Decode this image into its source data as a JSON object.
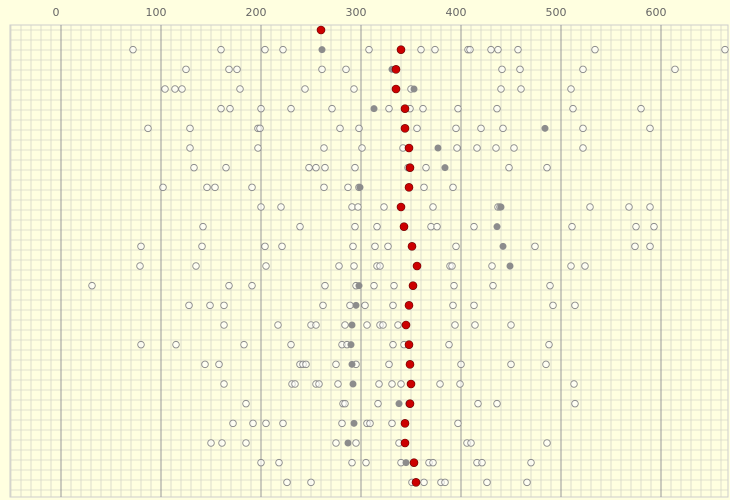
{
  "chart_data": {
    "type": "dotplot",
    "xlim": [
      -51,
      667
    ],
    "xticks": [
      0,
      100,
      200,
      300,
      400,
      500,
      600
    ],
    "grid": true,
    "background": "#ffffe0",
    "open_color": "#8c8c8c",
    "filled_color": "#8c8c8c",
    "marker_color": "#cc0000",
    "rows": [
      {
        "open": [],
        "filled": [],
        "marker": 260
      },
      {
        "open": [
          72,
          160,
          204,
          222,
          308,
          360,
          374,
          407,
          409,
          430,
          437,
          457,
          534,
          664
        ],
        "filled": [
          261
        ],
        "marker": 340
      },
      {
        "open": [
          125,
          168,
          176,
          261,
          285,
          441,
          459,
          522,
          614
        ],
        "filled": [
          331
        ],
        "marker": 335
      },
      {
        "open": [
          104,
          114,
          121,
          179,
          244,
          293,
          350,
          440,
          460,
          510
        ],
        "filled": [
          353
        ],
        "marker": 335
      },
      {
        "open": [
          160,
          169,
          200,
          230,
          271,
          328,
          349,
          362,
          397,
          436,
          512,
          580
        ],
        "filled": [
          313
        ],
        "marker": 344
      },
      {
        "open": [
          87,
          129,
          197,
          199,
          279,
          298,
          356,
          395,
          420,
          442,
          522,
          589
        ],
        "filled": [
          484
        ],
        "marker": 344
      },
      {
        "open": [
          129,
          197,
          263,
          301,
          342,
          396,
          416,
          435,
          453,
          522
        ],
        "filled": [
          377
        ],
        "marker": 348
      },
      {
        "open": [
          133,
          165,
          248,
          255,
          264,
          294,
          347,
          365,
          448,
          486
        ],
        "filled": [
          384
        ],
        "marker": 349
      },
      {
        "open": [
          102,
          146,
          154,
          191,
          263,
          287,
          298,
          363,
          392
        ],
        "filled": [
          299
        ],
        "marker": 348
      },
      {
        "open": [
          200,
          220,
          291,
          297,
          323,
          372,
          437,
          439,
          529,
          568,
          589
        ],
        "filled": [
          440
        ],
        "marker": 340
      },
      {
        "open": [
          142,
          239,
          294,
          316,
          370,
          376,
          413,
          511,
          575,
          593
        ],
        "filled": [
          436
        ],
        "marker": 343
      },
      {
        "open": [
          80,
          141,
          204,
          221,
          292,
          314,
          327,
          395,
          474,
          574,
          589
        ],
        "filled": [
          442
        ],
        "marker": 351
      },
      {
        "open": [
          79,
          135,
          205,
          278,
          293,
          316,
          319,
          389,
          391,
          431,
          510,
          524
        ],
        "filled": [
          449
        ],
        "marker": 356
      },
      {
        "open": [
          31,
          168,
          191,
          264,
          295,
          313,
          333,
          393,
          432,
          489
        ],
        "filled": [
          298
        ],
        "marker": 352
      },
      {
        "open": [
          128,
          149,
          163,
          262,
          289,
          304,
          332,
          392,
          413,
          492,
          514
        ],
        "filled": [
          295
        ],
        "marker": 348
      },
      {
        "open": [
          163,
          217,
          250,
          255,
          284,
          306,
          319,
          322,
          337,
          394,
          414,
          450
        ],
        "filled": [
          291
        ],
        "marker": 345
      },
      {
        "open": [
          80,
          115,
          183,
          230,
          281,
          286,
          332,
          343,
          388,
          488
        ],
        "filled": [
          290
        ],
        "marker": 348
      },
      {
        "open": [
          144,
          158,
          239,
          242,
          245,
          275,
          295,
          328,
          400,
          450,
          485
        ],
        "filled": [
          291
        ],
        "marker": 349
      },
      {
        "open": [
          163,
          231,
          234,
          255,
          258,
          277,
          318,
          331,
          340,
          379,
          399,
          513
        ],
        "filled": [
          292
        ],
        "marker": 350
      },
      {
        "open": [
          185,
          282,
          284,
          317,
          348,
          417,
          436,
          514
        ],
        "filled": [
          338
        ],
        "marker": 349
      },
      {
        "open": [
          172,
          192,
          205,
          222,
          281,
          306,
          309,
          331,
          397
        ],
        "filled": [
          293
        ],
        "marker": 344
      },
      {
        "open": [
          150,
          161,
          185,
          275,
          295,
          338,
          406,
          410,
          486
        ],
        "filled": [
          287
        ],
        "marker": 344
      },
      {
        "open": [
          200,
          218,
          291,
          305,
          340,
          368,
          372,
          416,
          421,
          470
        ],
        "filled": [
          345
        ],
        "marker": 353
      },
      {
        "open": [
          226,
          250,
          351,
          363,
          380,
          384,
          426,
          466
        ],
        "filled": [],
        "marker": 355
      }
    ]
  }
}
